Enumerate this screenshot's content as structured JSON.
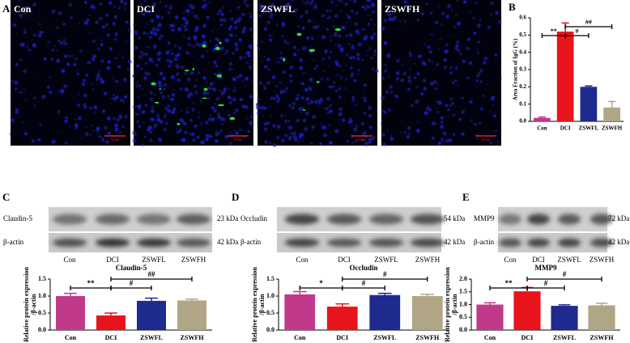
{
  "panel_a": {
    "letter": "A",
    "images": [
      {
        "label": "Con",
        "scale": "50 μm"
      },
      {
        "label": "DCI",
        "scale": "50 μm"
      },
      {
        "label": "ZSWFL",
        "scale": "50 μm"
      },
      {
        "label": "ZSWFH",
        "scale": "50 μm"
      }
    ]
  },
  "blots": [
    {
      "rows": [
        {
          "name": "Claudin-5",
          "size": "23 kDa"
        },
        {
          "name": "β-actin",
          "size": "42 kDa"
        }
      ],
      "lanes": [
        "Con",
        "DCI",
        "ZSWFL",
        "ZSWFH"
      ]
    },
    {
      "rows": [
        {
          "name": "Occludin",
          "size": "54 kDa"
        },
        {
          "name": "β-actin",
          "size": "42 kDa"
        }
      ],
      "lanes": [
        "Con",
        "DCI",
        "ZSWFL",
        "ZSWFH"
      ]
    },
    {
      "rows": [
        {
          "name": "MMP9",
          "size": "72 kDa"
        },
        {
          "name": "β-actin",
          "size": "42 kDa"
        }
      ],
      "lanes": [
        "Con",
        "DCI",
        "ZSWFL",
        "ZSWFH"
      ]
    }
  ],
  "chart_data": [
    {
      "type": "bar",
      "letter": "B",
      "ylabel": [
        "Area Fraction of IgG (%)"
      ],
      "categories": [
        "Con",
        "DCI",
        "ZSWFL",
        "ZSWFH"
      ],
      "values": [
        0.02,
        0.52,
        0.2,
        0.08
      ],
      "errors": [
        0.005,
        0.05,
        0.005,
        0.035
      ],
      "colors": [
        "#c0398b",
        "#e8141c",
        "#1f2a8f",
        "#b0a584"
      ],
      "ylim": [
        0,
        0.6
      ],
      "yticks": [
        {
          "value": 0,
          "label": "0.0"
        },
        0.1,
        0.2,
        0.3,
        0.4,
        0.5,
        0.6
      ],
      "significance": [
        {
          "label": "**",
          "between": [
            "Con",
            "DCI"
          ]
        },
        {
          "label": "#",
          "between": [
            "DCI",
            "ZSWFL"
          ]
        },
        {
          "label": "##",
          "between": [
            "DCI",
            "ZSWFH"
          ]
        }
      ]
    },
    {
      "type": "bar",
      "letter": "C",
      "title": "Claudin-5",
      "ylabel": [
        "Relative protein expression",
        "/β-actin"
      ],
      "categories": [
        "Con",
        "DCI",
        "ZSWFL",
        "ZSWFH"
      ],
      "values": [
        1.0,
        0.43,
        0.86,
        0.87
      ],
      "errors": [
        0.08,
        0.07,
        0.08,
        0.04
      ],
      "colors": [
        "#c0398b",
        "#e8141c",
        "#1f2a8f",
        "#b0a584"
      ],
      "ylim": [
        0,
        1.5
      ],
      "yticks": [
        {
          "value": 0,
          "label": "0.0"
        },
        0.5,
        {
          "value": 1,
          "label": "1.0"
        },
        1.5
      ],
      "significance": [
        {
          "label": "**",
          "between": [
            "Con",
            "DCI"
          ]
        },
        {
          "label": "#",
          "between": [
            "DCI",
            "ZSWFL"
          ]
        },
        {
          "label": "##",
          "between": [
            "DCI",
            "ZSWFH"
          ]
        }
      ]
    },
    {
      "type": "bar",
      "letter": "D",
      "title": "Occludin",
      "ylabel": [
        "Relative protein expression",
        "/β-actin"
      ],
      "categories": [
        "Con",
        "DCI",
        "ZSWFL",
        "ZSWFH"
      ],
      "values": [
        1.05,
        0.69,
        1.03,
        1.0
      ],
      "errors": [
        0.08,
        0.08,
        0.05,
        0.05
      ],
      "colors": [
        "#c0398b",
        "#e8141c",
        "#1f2a8f",
        "#b0a584"
      ],
      "ylim": [
        0,
        1.5
      ],
      "yticks": [
        {
          "value": 0,
          "label": "0.0"
        },
        0.5,
        {
          "value": 1,
          "label": "1.0"
        },
        1.5
      ],
      "significance": [
        {
          "label": "*",
          "between": [
            "Con",
            "DCI"
          ]
        },
        {
          "label": "#",
          "between": [
            "DCI",
            "ZSWFL"
          ]
        },
        {
          "label": "#",
          "between": [
            "DCI",
            "ZSWFH"
          ]
        }
      ]
    },
    {
      "type": "bar",
      "letter": "E",
      "title": "MMP9",
      "ylabel": [
        "Relative protein expression",
        "/β-actin"
      ],
      "categories": [
        "Con",
        "DCI",
        "ZSWFL",
        "ZSWFH"
      ],
      "values": [
        1.0,
        1.52,
        0.95,
        0.97
      ],
      "errors": [
        0.07,
        0.15,
        0.04,
        0.08
      ],
      "colors": [
        "#c0398b",
        "#e8141c",
        "#1f2a8f",
        "#b0a584"
      ],
      "ylim": [
        0,
        2
      ],
      "yticks": [
        {
          "value": 0,
          "label": "0.0"
        },
        0.5,
        {
          "value": 1,
          "label": "1.0"
        },
        1.5,
        {
          "value": 2,
          "label": "2.0"
        }
      ],
      "significance": [
        {
          "label": "**",
          "between": [
            "Con",
            "DCI"
          ]
        },
        {
          "label": "#",
          "between": [
            "DCI",
            "ZSWFL"
          ]
        },
        {
          "label": "#",
          "between": [
            "DCI",
            "ZSWFH"
          ]
        }
      ]
    }
  ]
}
